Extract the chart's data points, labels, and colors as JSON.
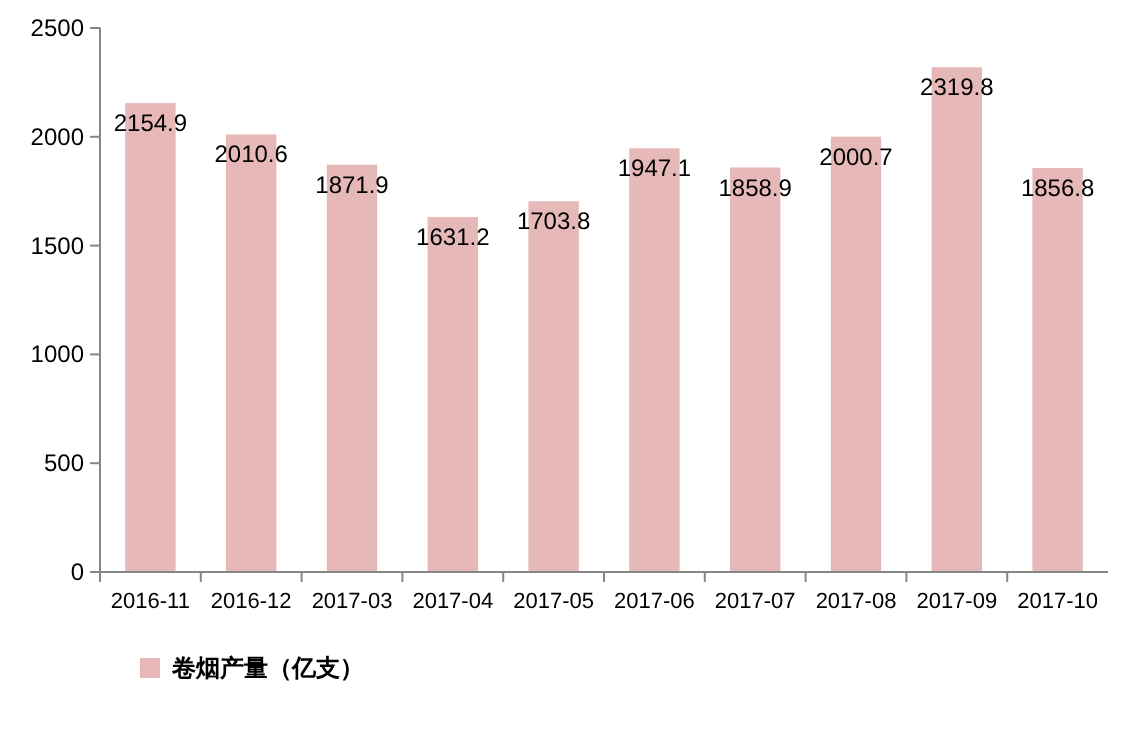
{
  "chart_data": {
    "type": "bar",
    "categories": [
      "2016-11",
      "2016-12",
      "2017-03",
      "2017-04",
      "2017-05",
      "2017-06",
      "2017-07",
      "2017-08",
      "2017-09",
      "2017-10"
    ],
    "series": [
      {
        "name": "卷烟产量（亿支）",
        "color": "#e6b9b8",
        "values": [
          2154.9,
          2010.6,
          1871.9,
          1631.2,
          1703.8,
          1947.1,
          1858.9,
          2000.7,
          2319.8,
          1856.8
        ]
      }
    ],
    "ylim": [
      0,
      2500
    ],
    "yticks": [
      0,
      500,
      1000,
      1500,
      2000,
      2500
    ],
    "data_labels": true,
    "legend": "bottom left",
    "grid": false
  }
}
